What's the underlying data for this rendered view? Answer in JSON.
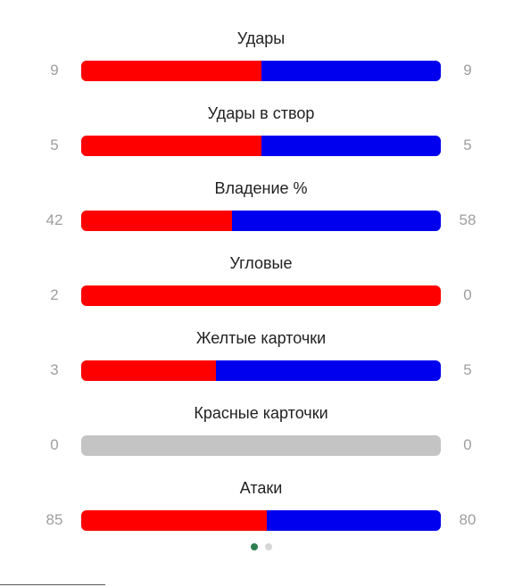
{
  "stats": [
    {
      "label": "Удары",
      "home": "9",
      "away": "9"
    },
    {
      "label": "Удары в створ",
      "home": "5",
      "away": "5"
    },
    {
      "label": "Владение %",
      "home": "42",
      "away": "58"
    },
    {
      "label": "Угловые",
      "home": "2",
      "away": "0"
    },
    {
      "label": "Желтые карточки",
      "home": "3",
      "away": "5"
    },
    {
      "label": "Красные карточки",
      "home": "0",
      "away": "0"
    },
    {
      "label": "Атаки",
      "home": "85",
      "away": "80"
    }
  ],
  "colors": {
    "home": "#ff0000",
    "away": "#0000ee",
    "empty": "#c4c4c4",
    "pager_active": "#2e7d4f",
    "pager_inactive": "#d6d6d6"
  },
  "pager": {
    "count": 2,
    "active_index": 0
  }
}
